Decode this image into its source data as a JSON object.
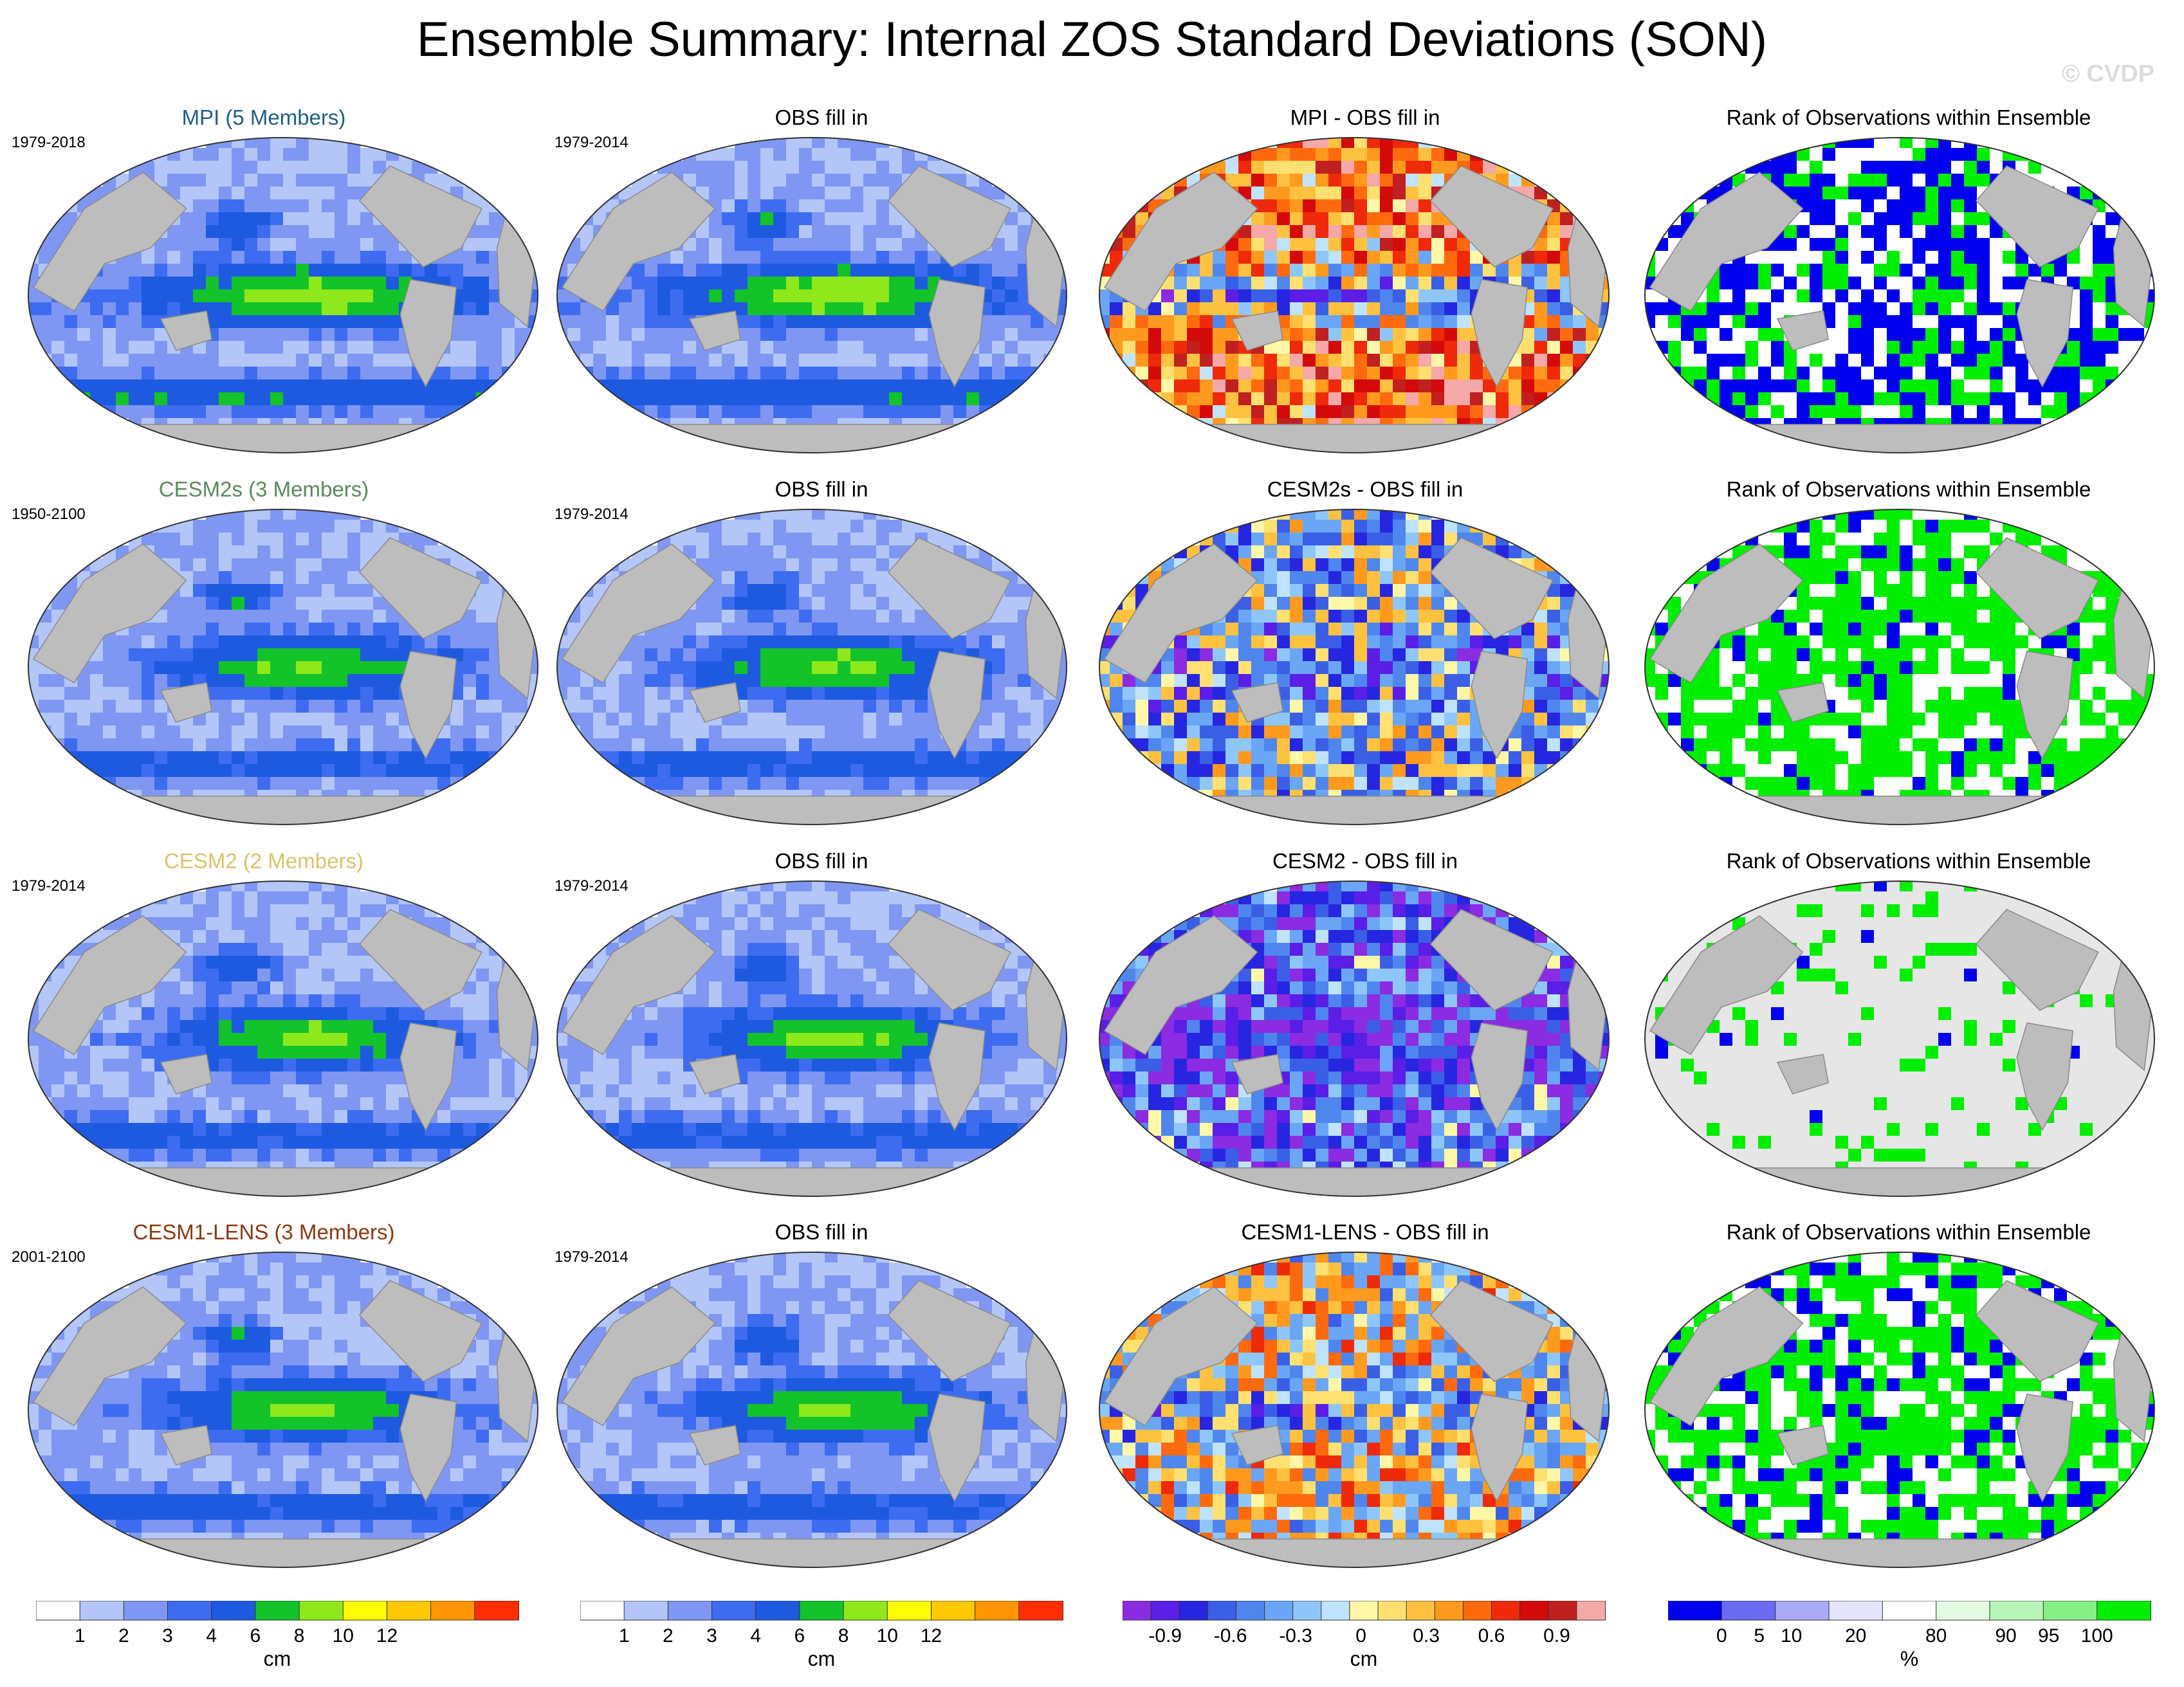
{
  "title": "Ensemble Summary: Internal ZOS Standard Deviations (SON)",
  "watermark": "© CVDP",
  "rows": [
    {
      "model": "MPI (5 Members)",
      "model_color": "#1f5f8c",
      "model_period": "1979-2018",
      "obs_title": "OBS fill in",
      "obs_period": "1979-2014",
      "diff_title": "MPI - OBS fill in",
      "rank_title": "Rank of Observations within Ensemble"
    },
    {
      "model": "CESM2s (3 Members)",
      "model_color": "#5a8a5a",
      "model_period": "1950-2100",
      "obs_title": "OBS fill in",
      "obs_period": "1979-2014",
      "diff_title": "CESM2s - OBS fill in",
      "rank_title": "Rank of Observations within Ensemble"
    },
    {
      "model": "CESM2 (2 Members)",
      "model_color": "#d9c46a",
      "model_period": "1979-2014",
      "obs_title": "OBS fill in",
      "obs_period": "1979-2014",
      "diff_title": "CESM2 - OBS fill in",
      "rank_title": "Rank of Observations within Ensemble"
    },
    {
      "model": "CESM1-LENS (3 Members)",
      "model_color": "#8a3a12",
      "model_period": "2001-2100",
      "obs_title": "OBS fill in",
      "obs_period": "1979-2014",
      "diff_title": "CESM1-LENS - OBS fill in",
      "rank_title": "Rank of Observations within Ensemble"
    }
  ],
  "colorbars": [
    {
      "name": "std-cm",
      "colors": [
        "#ffffff",
        "#b3c6f7",
        "#7f97f2",
        "#3d6cf0",
        "#1d5ae0",
        "#12c32a",
        "#8ee81c",
        "#ffff00",
        "#ffc800",
        "#ff9600",
        "#ff2d00"
      ],
      "tick_labels": [
        "1",
        "2",
        "3",
        "4",
        "6",
        "8",
        "10",
        "12"
      ],
      "unit": "cm"
    },
    {
      "name": "std-cm-obs",
      "colors": [
        "#ffffff",
        "#b3c6f7",
        "#7f97f2",
        "#3d6cf0",
        "#1d5ae0",
        "#12c32a",
        "#8ee81c",
        "#ffff00",
        "#ffc800",
        "#ff9600",
        "#ff2d00"
      ],
      "tick_labels": [
        "1",
        "2",
        "3",
        "4",
        "6",
        "8",
        "10",
        "12"
      ],
      "unit": "cm"
    },
    {
      "name": "diff-cm",
      "colors": [
        "#8b2be2",
        "#5a1ee6",
        "#2626e0",
        "#3a5fe6",
        "#4f86ee",
        "#6aa6f5",
        "#8fc6fa",
        "#bfe3fc",
        "#fff7a8",
        "#ffe070",
        "#ffc240",
        "#ff9a1e",
        "#ff6a0e",
        "#ee2a0a",
        "#d40a0a",
        "#c02020",
        "#f4a8a8"
      ],
      "tick_labels": [
        "-0.9",
        "-0.6",
        "-0.3",
        "0",
        "0.3",
        "0.6",
        "0.9"
      ],
      "unit": "cm"
    },
    {
      "name": "rank-pct",
      "colors": [
        "#0000ee",
        "#6a6af2",
        "#aaaaf6",
        "#e4e4fc",
        "#ffffff",
        "#e2fbe2",
        "#b8f5b8",
        "#86ef86",
        "#00ee00"
      ],
      "tick_labels": [
        "0",
        "5",
        "10",
        "20",
        "80",
        "90",
        "95",
        "100"
      ],
      "unit": "%"
    }
  ],
  "chart_data": {
    "type": "heatmap",
    "title": "Ensemble Summary: Internal ZOS Standard Deviations (SON)",
    "panels": [
      "MPI (5 Members)",
      "OBS fill in",
      "MPI - OBS fill in",
      "Rank of Observations within Ensemble",
      "CESM2s (3 Members)",
      "OBS fill in",
      "CESM2s - OBS fill in",
      "Rank of Observations within Ensemble",
      "CESM2 (2 Members)",
      "OBS fill in",
      "CESM2 - OBS fill in",
      "Rank of Observations within Ensemble",
      "CESM1-LENS (3 Members)",
      "OBS fill in",
      "CESM1-LENS - OBS fill in",
      "Rank of Observations within Ensemble"
    ],
    "std_levels_cm": [
      1,
      2,
      3,
      4,
      6,
      8,
      10,
      12
    ],
    "diff_levels_cm": [
      -0.9,
      -0.6,
      -0.3,
      0,
      0.3,
      0.6,
      0.9
    ],
    "rank_levels_pct": [
      0,
      5,
      10,
      20,
      80,
      90,
      95,
      100
    ]
  }
}
